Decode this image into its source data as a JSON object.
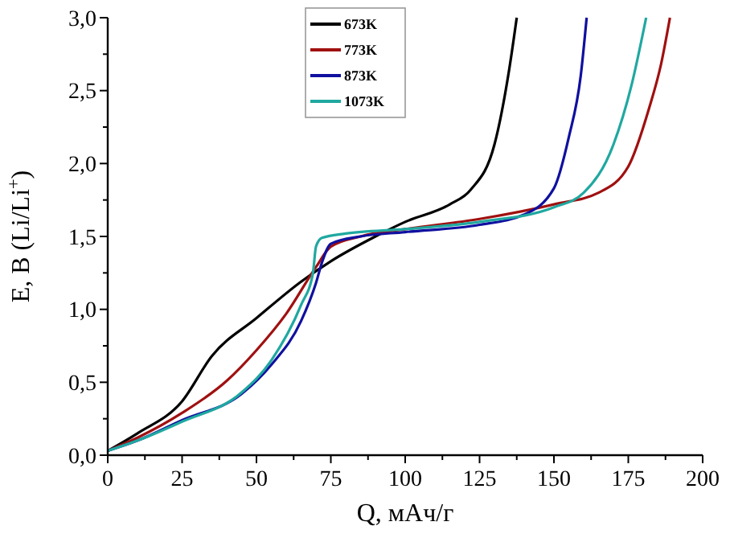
{
  "chart_data": {
    "type": "line",
    "xlabel": "Q, мАч/г",
    "ylabel": "E, В (Li/Li$^{+}$)",
    "xlim": [
      0,
      200
    ],
    "ylim": [
      0,
      3
    ],
    "xticks": [
      0,
      {
        "value": 12.5,
        "label": null
      },
      25,
      {
        "value": 37.5,
        "label": null
      },
      50,
      {
        "value": 62.5,
        "label": null
      },
      75,
      {
        "value": 87.5,
        "label": null
      },
      100,
      {
        "value": 112.5,
        "label": null
      },
      125,
      {
        "value": 137.5,
        "label": null
      },
      150,
      {
        "value": 162.5,
        "label": null
      },
      175,
      {
        "value": 187.5,
        "label": null
      },
      200
    ],
    "yticks": [
      {
        "value": 0,
        "label": "0,0"
      },
      {
        "value": 0.25,
        "label": null
      },
      {
        "value": 0.5,
        "label": "0,5"
      },
      {
        "value": 0.75,
        "label": null
      },
      {
        "value": 1,
        "label": "1,0"
      },
      {
        "value": 1.25,
        "label": null
      },
      {
        "value": 1.5,
        "label": "1,5"
      },
      {
        "value": 1.75,
        "label": null
      },
      {
        "value": 2,
        "label": "2,0"
      },
      {
        "value": 2.25,
        "label": null
      },
      {
        "value": 2.5,
        "label": "2,5"
      },
      {
        "value": 2.75,
        "label": null
      },
      {
        "value": 3,
        "label": "3,0"
      }
    ],
    "grid": false,
    "legend": "top",
    "marker": "none",
    "line_style": "solid",
    "series": [
      {
        "name": "673K",
        "color": "#000000",
        "x": [
          0,
          10,
          25,
          35,
          50,
          65,
          75,
          90,
          100,
          115,
          122,
          130,
          135,
          137.5
        ],
        "values": [
          0.03,
          0.15,
          0.37,
          0.68,
          0.94,
          1.19,
          1.33,
          1.5,
          1.6,
          1.72,
          1.82,
          2.13,
          2.65,
          3
        ]
      },
      {
        "name": "773K",
        "color": "#a01010",
        "x": [
          0,
          10,
          25,
          40,
          50,
          60,
          70,
          75,
          85,
          100,
          125,
          150,
          165,
          175,
          182,
          186,
          189
        ],
        "values": [
          0.03,
          0.12,
          0.29,
          0.51,
          0.72,
          0.97,
          1.29,
          1.43,
          1.5,
          1.55,
          1.62,
          1.72,
          1.8,
          1.98,
          2.38,
          2.68,
          3
        ]
      },
      {
        "name": "873K",
        "color": "#1010a0",
        "x": [
          0,
          10,
          25,
          45,
          55,
          65,
          70,
          72,
          75,
          85,
          100,
          125,
          140,
          150,
          155,
          159,
          161
        ],
        "values": [
          0.03,
          0.1,
          0.24,
          0.42,
          0.62,
          0.92,
          1.18,
          1.32,
          1.45,
          1.5,
          1.53,
          1.58,
          1.65,
          1.83,
          2.18,
          2.6,
          3
        ]
      },
      {
        "name": "1073K",
        "color": "#20a8a0",
        "x": [
          0,
          10,
          25,
          45,
          55,
          65,
          69,
          70,
          72,
          80,
          100,
          125,
          150,
          160,
          170,
          176,
          181
        ],
        "values": [
          0.03,
          0.1,
          0.23,
          0.43,
          0.65,
          1.03,
          1.25,
          1.43,
          1.49,
          1.52,
          1.55,
          1.6,
          1.7,
          1.8,
          2.13,
          2.53,
          3
        ]
      }
    ]
  }
}
